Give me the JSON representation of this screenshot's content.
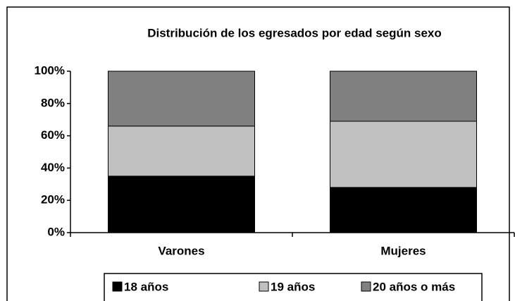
{
  "chart_data": {
    "type": "stacked_bar",
    "title": "Distribución de los egresados por edad según sexo",
    "categories": [
      "Varones",
      "Mujeres"
    ],
    "series": [
      {
        "name": "18 años",
        "color": "#000000",
        "values": [
          35,
          28
        ]
      },
      {
        "name": "19 años",
        "color": "#c0c0c0",
        "values": [
          31,
          41
        ]
      },
      {
        "name": "20 años o más",
        "color": "#808080",
        "values": [
          34,
          31
        ]
      }
    ],
    "ylim": [
      0,
      100
    ],
    "yticks": [
      {
        "value": 0,
        "label": "0%"
      },
      {
        "value": 20,
        "label": "20%"
      },
      {
        "value": 40,
        "label": "40%"
      },
      {
        "value": 60,
        "label": "60%"
      },
      {
        "value": 80,
        "label": "80%"
      },
      {
        "value": 100,
        "label": "100%"
      }
    ],
    "legend": "bottom"
  }
}
